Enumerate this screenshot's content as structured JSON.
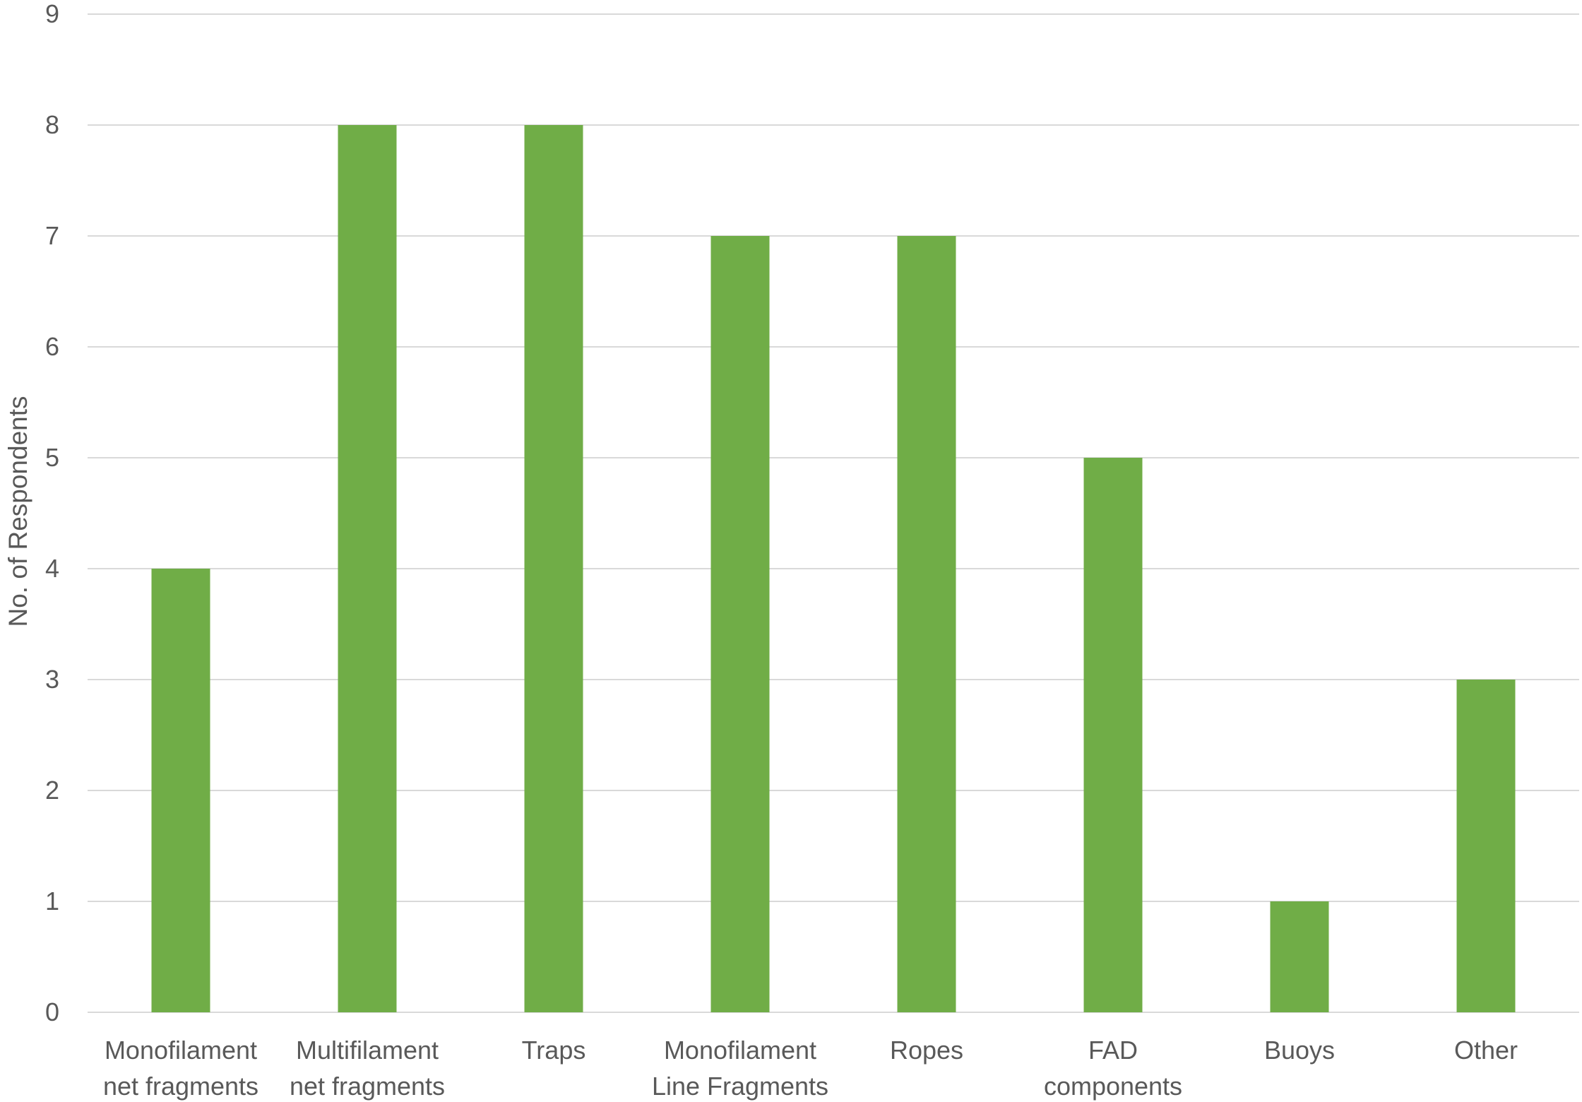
{
  "chart_data": {
    "type": "bar",
    "categories": [
      [
        "Monofilament",
        "net fragments"
      ],
      [
        "Multifilament",
        "net fragments"
      ],
      [
        "Traps"
      ],
      [
        "Monofilament",
        "Line Fragments"
      ],
      [
        "Ropes"
      ],
      [
        "FAD",
        "components"
      ],
      [
        "Buoys"
      ],
      [
        "Other"
      ]
    ],
    "values": [
      4,
      8,
      8,
      7,
      7,
      5,
      1,
      3
    ],
    "title": "",
    "xlabel": "",
    "ylabel": "No. of Respondents",
    "ylim": [
      0,
      9
    ],
    "yticks": [
      0,
      1,
      2,
      3,
      4,
      5,
      6,
      7,
      8,
      9
    ],
    "grid": true,
    "legend": "none",
    "colors": {
      "bar": "#70AD47",
      "grid": "#D9D9D9",
      "text": "#595959"
    }
  }
}
